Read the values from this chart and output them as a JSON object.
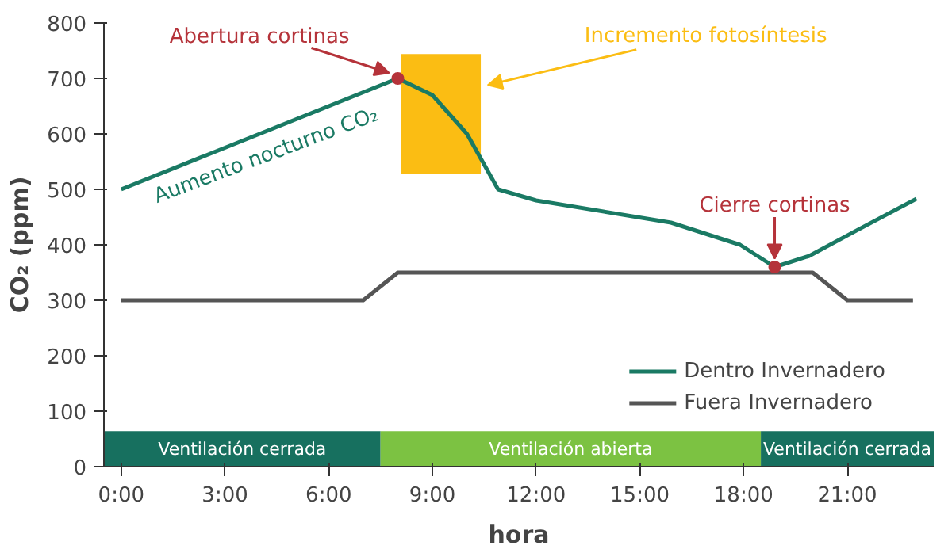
{
  "chart_data": {
    "type": "line",
    "xlabel": "hora",
    "ylabel": "CO₂ (ppm)",
    "xlim": [
      -0.5,
      23.5
    ],
    "ylim": [
      0,
      800
    ],
    "xticks": [
      {
        "value": 0,
        "label": "0:00"
      },
      {
        "value": 3,
        "label": "3:00"
      },
      {
        "value": 6,
        "label": "6:00"
      },
      {
        "value": 9,
        "label": "9:00"
      },
      {
        "value": 12,
        "label": "12:00"
      },
      {
        "value": 15,
        "label": "15:00"
      },
      {
        "value": 18,
        "label": "18:00"
      },
      {
        "value": 21,
        "label": "21:00"
      }
    ],
    "yticks": [
      0,
      100,
      200,
      300,
      400,
      500,
      600,
      700,
      800
    ],
    "series": [
      {
        "name": "Dentro Invernadero",
        "color": "#1a7a64",
        "x": [
          0,
          8,
          9,
          10,
          10.9,
          12,
          15.9,
          17.9,
          18.9,
          19.9,
          21.3,
          23
        ],
        "values": [
          500,
          700,
          670,
          600,
          500,
          480,
          440,
          400,
          360,
          380,
          427,
          483
        ]
      },
      {
        "name": "Fuera Invernadero",
        "color": "#555555",
        "x": [
          0,
          7,
          8,
          20,
          21,
          22.9
        ],
        "values": [
          300,
          300,
          350,
          350,
          300,
          300
        ]
      }
    ],
    "bands": [
      {
        "axis": "x",
        "from": 8.1,
        "to": 10.4,
        "label": "Incremento fotosíntesis",
        "color": "#fbbd13"
      },
      {
        "axis": "x",
        "from": -0.5,
        "to": 7.5,
        "label": "Ventilación cerrada",
        "color": "#17705f"
      },
      {
        "axis": "x",
        "from": 7.5,
        "to": 18.5,
        "label": "Ventilación abierta",
        "color": "#7cc242"
      },
      {
        "axis": "x",
        "from": 18.5,
        "to": 23.5,
        "label": "Ventilación cerrada",
        "color": "#17705f"
      }
    ],
    "annotations": [
      {
        "text": "Abertura cortinas",
        "x": 8,
        "y": 700
      },
      {
        "text": "Cierre cortinas",
        "x": 18.9,
        "y": 360
      },
      "Aumento nocturno CO₂"
    ],
    "legend": "bottom right",
    "grid": false,
    "marker": "none",
    "line_style": "solid"
  }
}
